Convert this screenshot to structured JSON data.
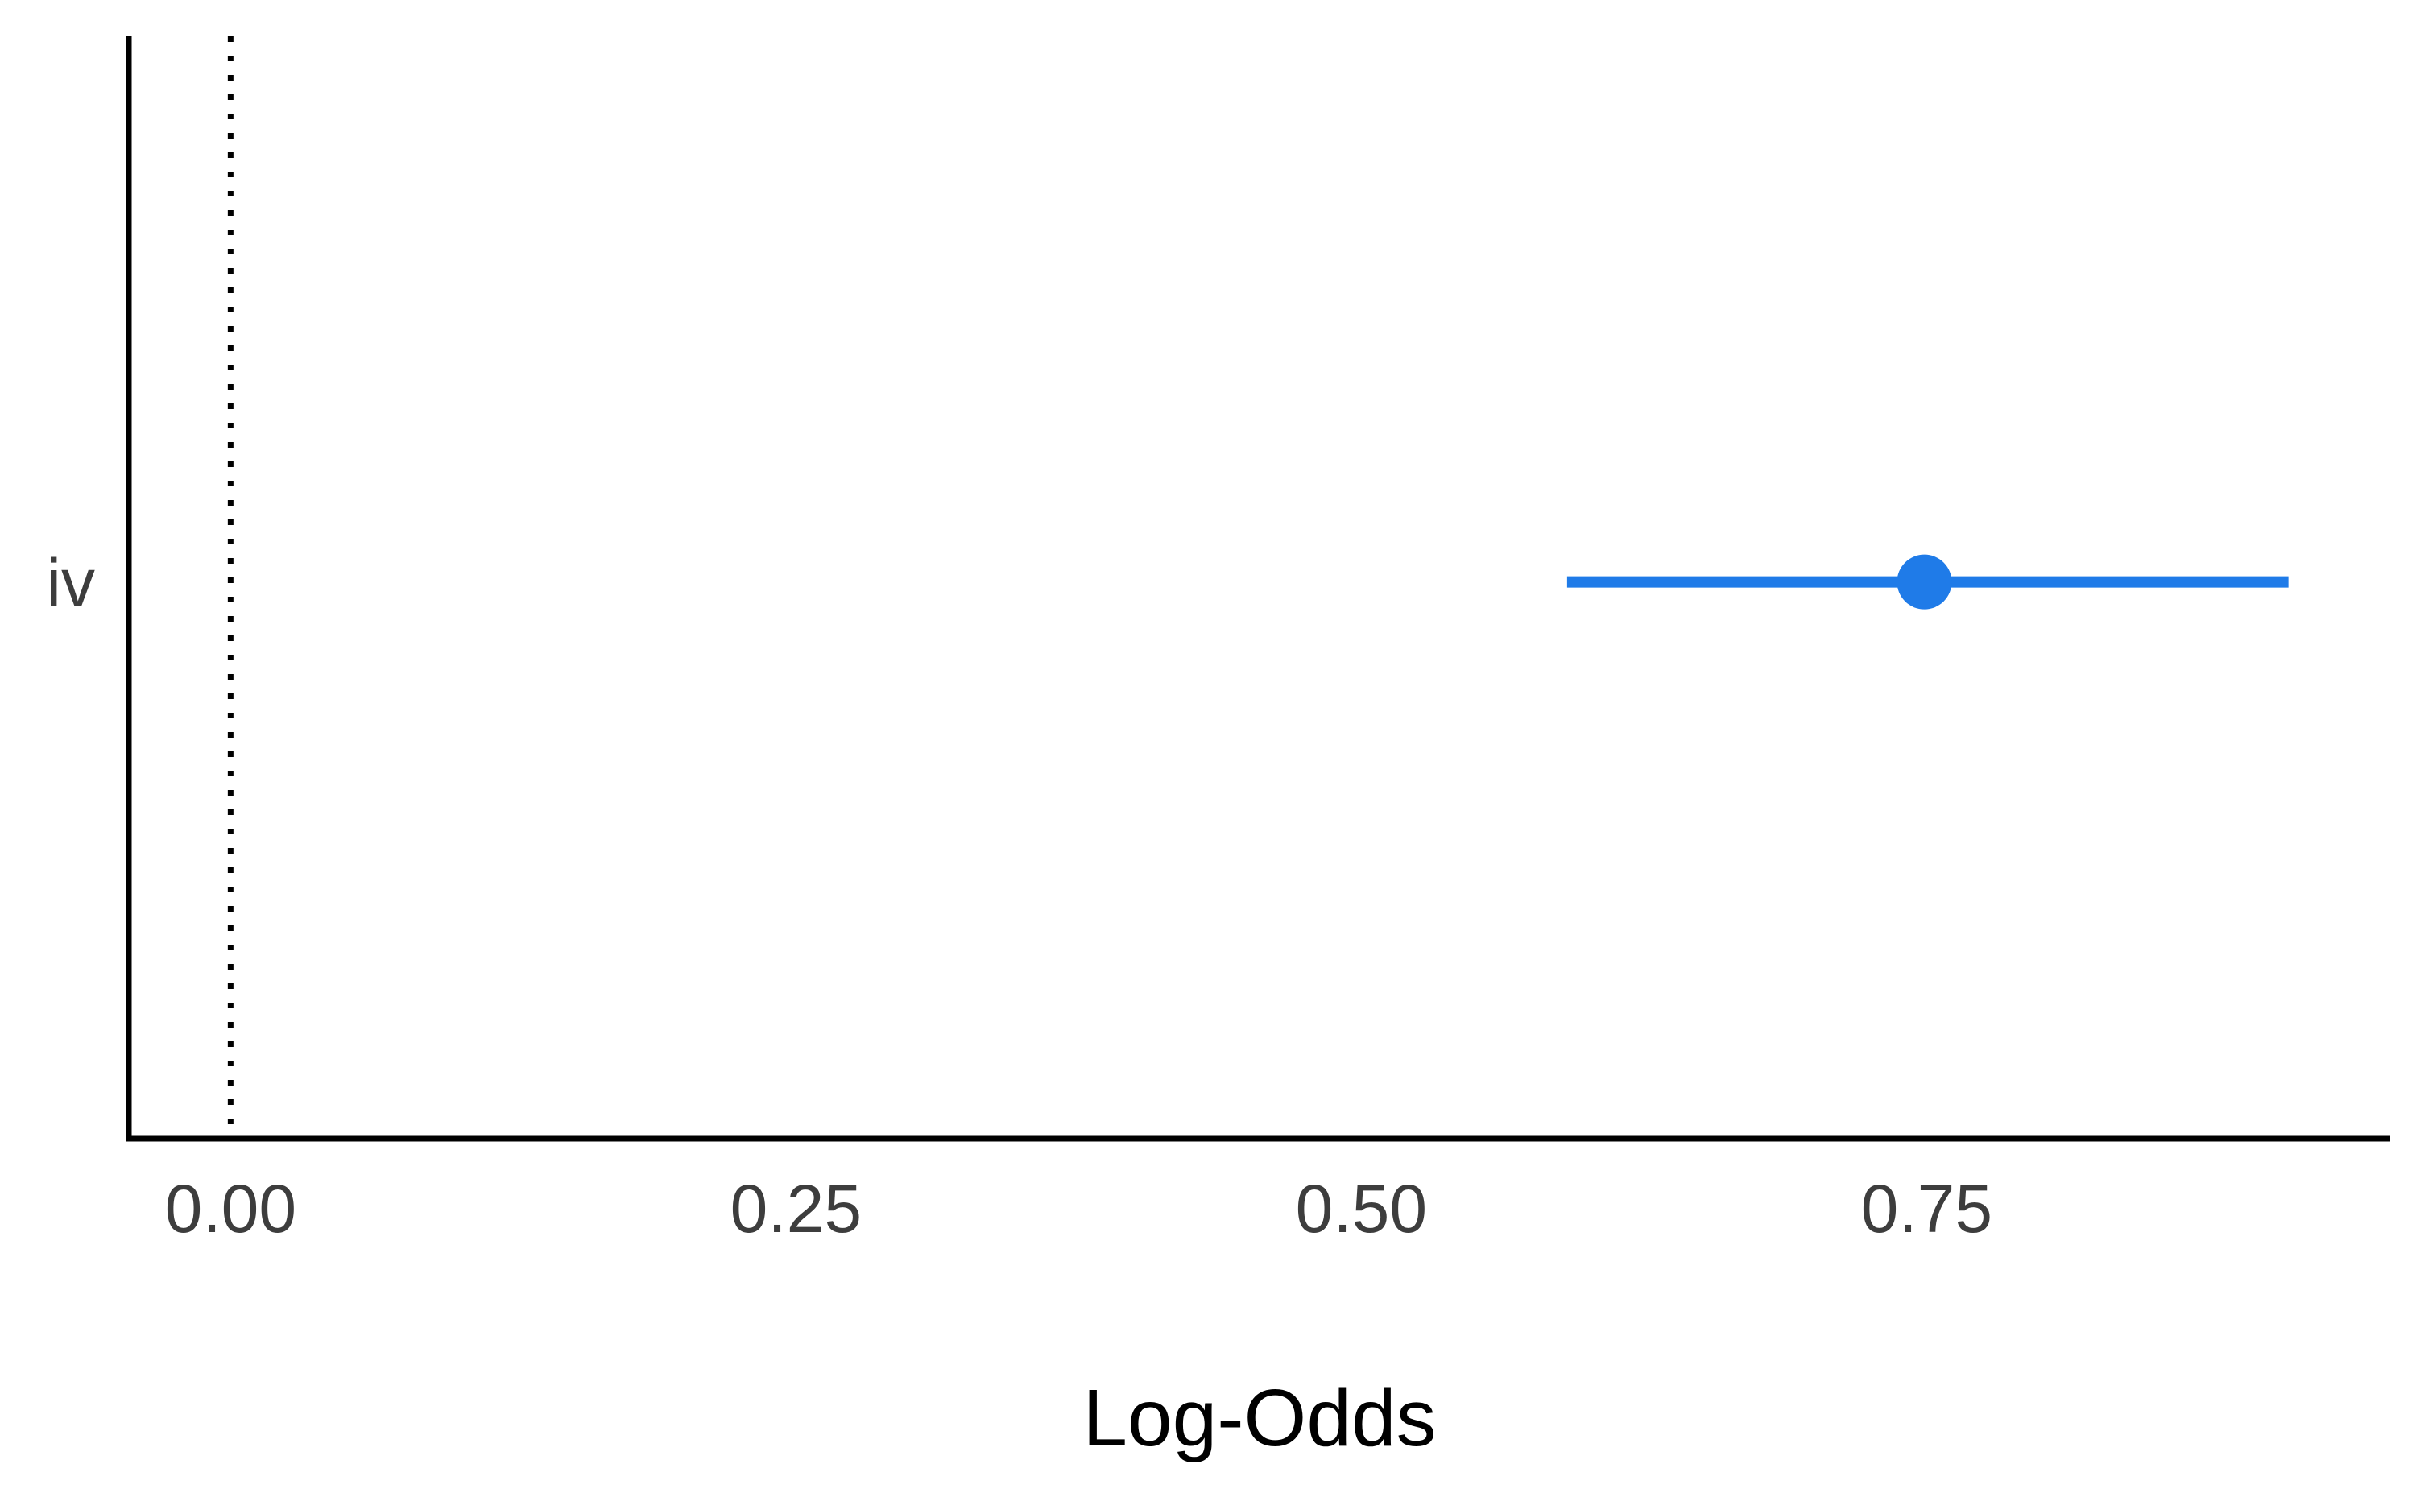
{
  "chart_data": {
    "type": "forest",
    "xlabel": "Log-Odds",
    "ylabel": "",
    "x_ticks": [
      0.0,
      0.25,
      0.5,
      0.75
    ],
    "x_tick_labels": [
      "0.00",
      "0.25",
      "0.50",
      "0.75"
    ],
    "xlim": [
      -0.045,
      0.955
    ],
    "reference_line": {
      "x": 0,
      "style": "dotted"
    },
    "terms": [
      {
        "label": "iv",
        "estimate": 0.749,
        "conf_low": 0.591,
        "conf_high": 0.91
      }
    ],
    "colors": {
      "point": "#1f7be8",
      "axis": "#000000",
      "reference": "#000000"
    },
    "grid": false,
    "legend": "none"
  }
}
